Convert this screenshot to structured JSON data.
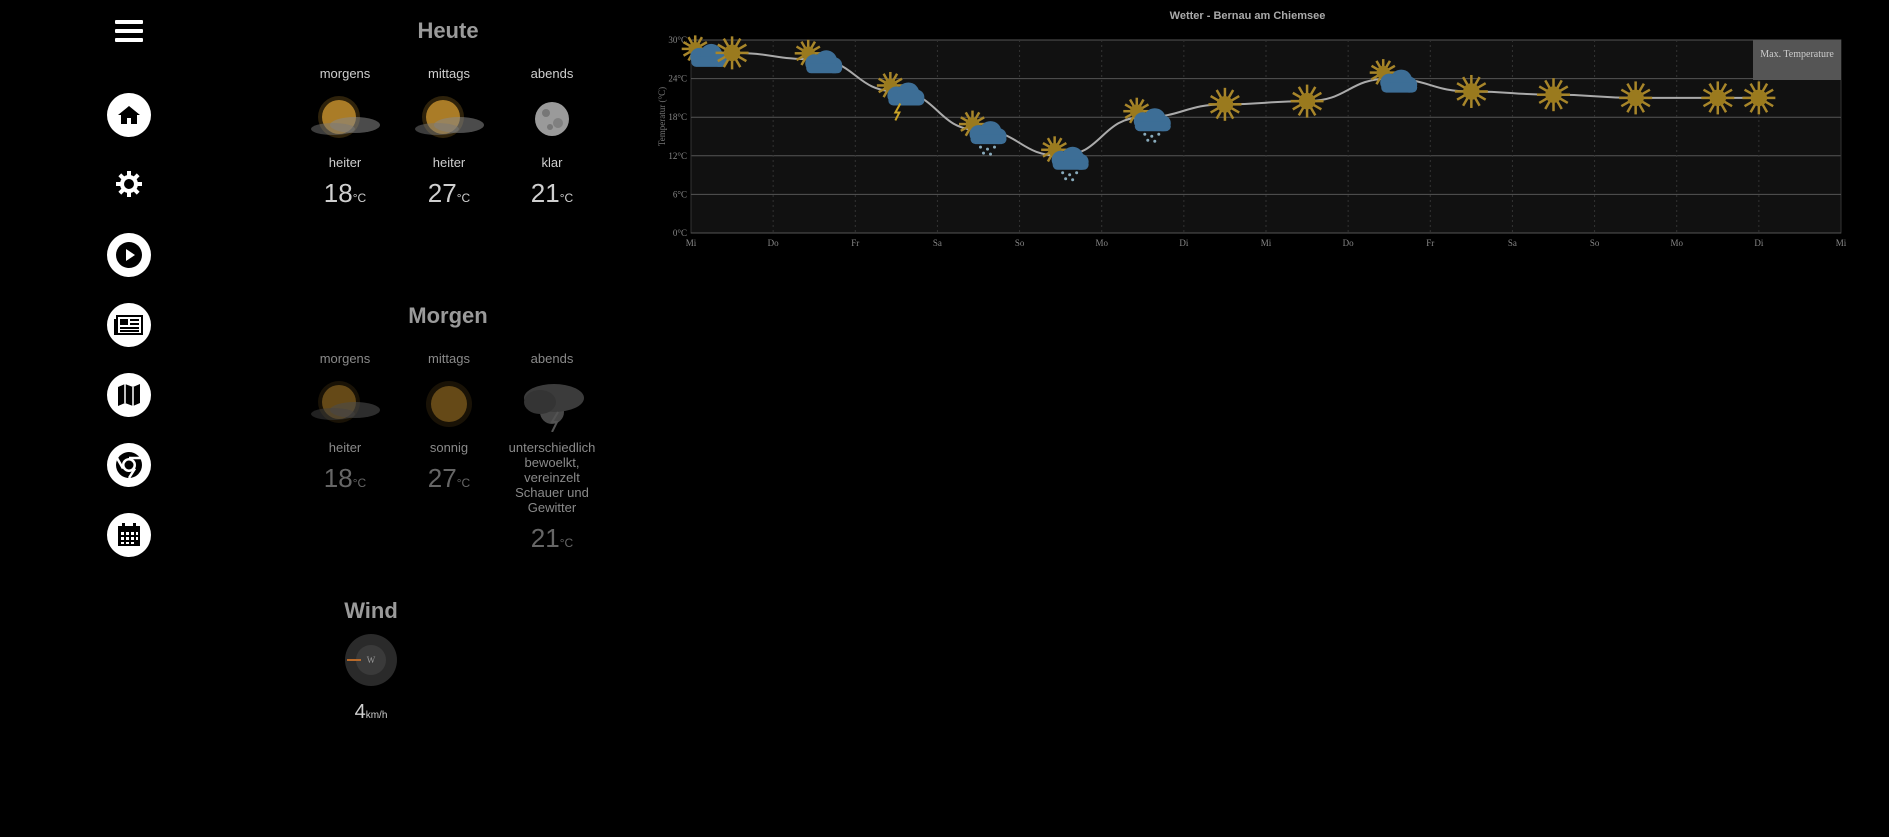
{
  "sidebar": {
    "menu_icon": "hamburger-icon",
    "items": [
      {
        "name": "home",
        "icon": "home-icon"
      },
      {
        "name": "settings",
        "icon": "gear-icon"
      },
      {
        "name": "play",
        "icon": "play-icon"
      },
      {
        "name": "news",
        "icon": "newspaper-icon"
      },
      {
        "name": "map",
        "icon": "map-icon"
      },
      {
        "name": "browser",
        "icon": "chrome-icon"
      },
      {
        "name": "calendar",
        "icon": "calendar-icon"
      }
    ]
  },
  "today": {
    "title": "Heute",
    "periods": [
      {
        "label": "morgens",
        "icon": "partly-sunny-icon",
        "desc": "heiter",
        "temp": "18",
        "unit": "°C"
      },
      {
        "label": "mittags",
        "icon": "partly-sunny-icon",
        "desc": "heiter",
        "temp": "27",
        "unit": "°C"
      },
      {
        "label": "abends",
        "icon": "moon-icon",
        "desc": "klar",
        "temp": "21",
        "unit": "°C"
      }
    ]
  },
  "tomorrow": {
    "title": "Morgen",
    "periods": [
      {
        "label": "morgens",
        "icon": "partly-sunny-icon",
        "desc": "heiter",
        "temp": "18",
        "unit": "°C"
      },
      {
        "label": "mittags",
        "icon": "sun-icon",
        "desc": "sonnig",
        "temp": "27",
        "unit": "°C"
      },
      {
        "label": "abends",
        "icon": "night-thunderstorm-icon",
        "desc": "unterschiedlich bewoelkt, vereinzelt Schauer und Gewitter",
        "temp": "21",
        "unit": "°C"
      }
    ]
  },
  "wind": {
    "title": "Wind",
    "direction": "W",
    "speed": "4",
    "unit": "km/h"
  },
  "chart_data": {
    "type": "line",
    "title": "Wetter - Bernau am Chiemsee",
    "ylabel": "Temperatur (°C)",
    "ylim": [
      0,
      30
    ],
    "y_ticks": [
      "0°C",
      "6°C",
      "12°C",
      "18°C",
      "24°C",
      "30°C"
    ],
    "x_ticks": [
      "Mi",
      "Do",
      "Fr",
      "Sa",
      "So",
      "Mo",
      "Di",
      "Mi",
      "Do",
      "Fr",
      "Sa",
      "So",
      "Mo",
      "Di",
      "Mi"
    ],
    "series": [
      {
        "name": "Max. Temperature",
        "x": [
          0.1,
          0.5,
          1.5,
          2.5,
          3.5,
          4.5,
          5.5,
          6.5,
          7.5,
          8.5,
          9.5,
          10.5,
          11.5,
          12.5,
          13.0
        ],
        "values": [
          28,
          28,
          27,
          22,
          16,
          12,
          18,
          20,
          20.5,
          24,
          22,
          21.5,
          21,
          21,
          21
        ],
        "icons": [
          "partly-sunny-icon",
          "sun-icon",
          "partly-cloudy-icon",
          "thunderstorm-icon",
          "rain-icon",
          "rain-icon",
          "rain-icon",
          "sun-icon",
          "sun-icon",
          "partly-cloudy-icon",
          "sun-icon",
          "sun-icon",
          "sun-icon",
          "sun-icon",
          "sun-icon"
        ]
      }
    ],
    "grid": true,
    "legend": "top-right"
  }
}
